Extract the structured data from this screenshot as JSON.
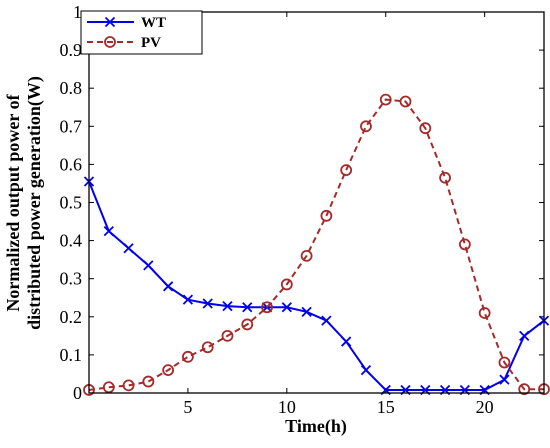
{
  "chart_data": {
    "type": "line",
    "title": "",
    "xlabel": "Time(h)",
    "ylabel_lines": [
      "Normalized output power of",
      "distributed power generation(W)"
    ],
    "xlim": [
      0,
      23
    ],
    "ylim": [
      0,
      1
    ],
    "x_ticks": [
      5,
      10,
      15,
      20
    ],
    "y_ticks": [
      0,
      0.1,
      0.2,
      0.3,
      0.4,
      0.5,
      0.6,
      0.7,
      0.8,
      0.9,
      1
    ],
    "x_tick_labels": [
      "5",
      "10",
      "15",
      "20"
    ],
    "y_tick_labels": [
      "0",
      "0.1",
      "0.2",
      "0.3",
      "0.4",
      "0.5",
      "0.6",
      "0.7",
      "0.8",
      "0.9",
      "1"
    ],
    "grid": false,
    "legend_position": "top-left",
    "x": [
      0,
      1,
      2,
      3,
      4,
      5,
      6,
      7,
      8,
      9,
      10,
      11,
      12,
      13,
      14,
      15,
      16,
      17,
      18,
      19,
      20,
      21,
      22,
      23
    ],
    "series": [
      {
        "name": "WT",
        "color": "#0000ee",
        "marker": "x",
        "line_style": "solid",
        "values": [
          0.555,
          0.425,
          0.38,
          0.335,
          0.28,
          0.245,
          0.235,
          0.228,
          0.225,
          0.225,
          0.225,
          0.213,
          0.19,
          0.135,
          0.06,
          0.008,
          0.008,
          0.008,
          0.008,
          0.008,
          0.008,
          0.035,
          0.15,
          0.19
        ]
      },
      {
        "name": "PV",
        "color": "#a52a2a",
        "marker": "circle",
        "line_style": "dashed",
        "values": [
          0.008,
          0.015,
          0.02,
          0.03,
          0.06,
          0.095,
          0.12,
          0.15,
          0.18,
          0.225,
          0.285,
          0.36,
          0.465,
          0.585,
          0.7,
          0.77,
          0.765,
          0.695,
          0.565,
          0.39,
          0.21,
          0.08,
          0.01,
          0.01
        ]
      }
    ]
  }
}
